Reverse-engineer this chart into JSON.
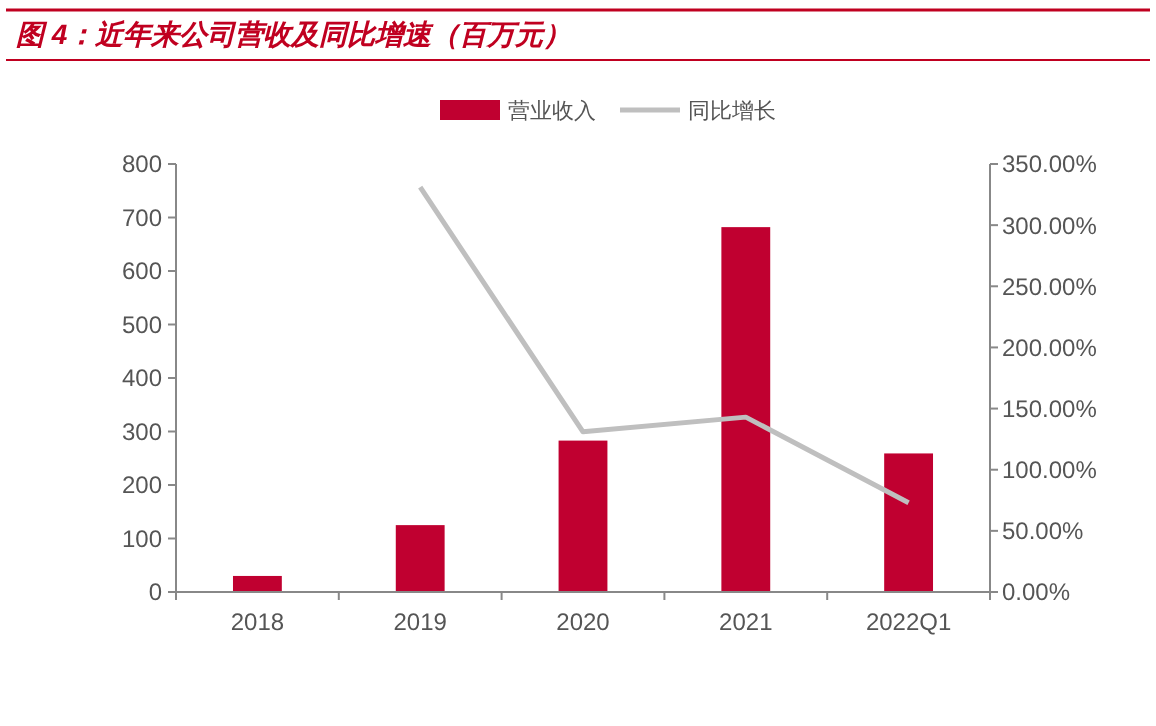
{
  "chart_data": {
    "type": "bar",
    "title": "图 4：近年来公司营收及同比增速（百万元）",
    "categories": [
      "2018",
      "2019",
      "2020",
      "2021",
      "2022Q1"
    ],
    "series": [
      {
        "name": "营业收入",
        "color": "#c00030",
        "values": [
          30,
          125,
          283,
          682,
          259
        ]
      },
      {
        "name": "同比增长",
        "type": "line",
        "axis": "y2",
        "color": "#bfbfbf",
        "values": [
          null,
          331,
          131,
          143,
          73
        ]
      }
    ],
    "ylim": [
      0,
      800
    ],
    "yticks": [
      0,
      100,
      200,
      300,
      400,
      500,
      600,
      700,
      800
    ],
    "y2lim": [
      0,
      350
    ],
    "y2ticks": [
      {
        "value": 0,
        "label": "0.00%"
      },
      {
        "value": 50,
        "label": "50.00%"
      },
      {
        "value": 100,
        "label": "100.00%"
      },
      {
        "value": 150,
        "label": "150.00%"
      },
      {
        "value": 200,
        "label": "200.00%"
      },
      {
        "value": 250,
        "label": "250.00%"
      },
      {
        "value": 300,
        "label": "300.00%"
      },
      {
        "value": 350,
        "label": "350.00%"
      }
    ],
    "legend": "top",
    "grid": false,
    "marker": "none",
    "line_style": "solid"
  }
}
